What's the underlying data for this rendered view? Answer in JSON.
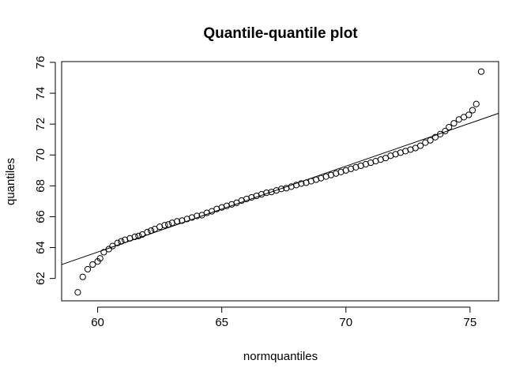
{
  "chart_data": {
    "type": "scatter",
    "title": "Quantile-quantile plot",
    "xlabel": "normquantiles",
    "ylabel": "quantiles",
    "xlim": [
      58.55,
      76.15
    ],
    "ylim": [
      60.55,
      76.05
    ],
    "xticks": [
      60,
      65,
      70,
      75
    ],
    "yticks": [
      62,
      64,
      66,
      68,
      70,
      72,
      74,
      76
    ],
    "grid": false,
    "reference_line": {
      "x1": 58.55,
      "y1": 62.9,
      "x2": 76.15,
      "y2": 72.7
    },
    "points": [
      [
        59.2,
        61.1
      ],
      [
        59.4,
        62.1
      ],
      [
        59.6,
        62.6
      ],
      [
        59.8,
        62.9
      ],
      [
        60.0,
        63.1
      ],
      [
        60.1,
        63.3
      ],
      [
        60.25,
        63.7
      ],
      [
        60.45,
        63.9
      ],
      [
        60.6,
        64.1
      ],
      [
        60.8,
        64.3
      ],
      [
        60.95,
        64.4
      ],
      [
        61.1,
        64.5
      ],
      [
        61.3,
        64.6
      ],
      [
        61.5,
        64.7
      ],
      [
        61.65,
        64.75
      ],
      [
        61.8,
        64.85
      ],
      [
        62.0,
        65.0
      ],
      [
        62.15,
        65.1
      ],
      [
        62.3,
        65.2
      ],
      [
        62.5,
        65.35
      ],
      [
        62.7,
        65.45
      ],
      [
        62.85,
        65.5
      ],
      [
        63.0,
        65.6
      ],
      [
        63.2,
        65.7
      ],
      [
        63.4,
        65.75
      ],
      [
        63.6,
        65.85
      ],
      [
        63.8,
        65.95
      ],
      [
        64.0,
        66.05
      ],
      [
        64.2,
        66.1
      ],
      [
        64.4,
        66.25
      ],
      [
        64.6,
        66.35
      ],
      [
        64.8,
        66.5
      ],
      [
        65.0,
        66.6
      ],
      [
        65.2,
        66.7
      ],
      [
        65.4,
        66.8
      ],
      [
        65.6,
        66.9
      ],
      [
        65.8,
        67.05
      ],
      [
        66.0,
        67.15
      ],
      [
        66.2,
        67.25
      ],
      [
        66.4,
        67.35
      ],
      [
        66.6,
        67.45
      ],
      [
        66.8,
        67.55
      ],
      [
        67.0,
        67.6
      ],
      [
        67.2,
        67.7
      ],
      [
        67.4,
        67.8
      ],
      [
        67.6,
        67.85
      ],
      [
        67.8,
        67.95
      ],
      [
        68.0,
        68.05
      ],
      [
        68.2,
        68.15
      ],
      [
        68.4,
        68.2
      ],
      [
        68.6,
        68.3
      ],
      [
        68.8,
        68.4
      ],
      [
        69.0,
        68.5
      ],
      [
        69.2,
        68.6
      ],
      [
        69.4,
        68.7
      ],
      [
        69.6,
        68.8
      ],
      [
        69.8,
        68.9
      ],
      [
        70.0,
        69.0
      ],
      [
        70.2,
        69.1
      ],
      [
        70.4,
        69.2
      ],
      [
        70.6,
        69.3
      ],
      [
        70.8,
        69.4
      ],
      [
        71.0,
        69.5
      ],
      [
        71.2,
        69.6
      ],
      [
        71.4,
        69.7
      ],
      [
        71.6,
        69.8
      ],
      [
        71.8,
        69.95
      ],
      [
        72.0,
        70.05
      ],
      [
        72.2,
        70.15
      ],
      [
        72.4,
        70.25
      ],
      [
        72.6,
        70.35
      ],
      [
        72.8,
        70.45
      ],
      [
        73.0,
        70.6
      ],
      [
        73.2,
        70.8
      ],
      [
        73.4,
        70.95
      ],
      [
        73.6,
        71.15
      ],
      [
        73.8,
        71.35
      ],
      [
        74.0,
        71.55
      ],
      [
        74.15,
        71.8
      ],
      [
        74.35,
        72.05
      ],
      [
        74.55,
        72.3
      ],
      [
        74.75,
        72.45
      ],
      [
        74.95,
        72.6
      ],
      [
        75.1,
        72.9
      ],
      [
        75.25,
        73.3
      ],
      [
        75.45,
        75.4
      ]
    ]
  }
}
